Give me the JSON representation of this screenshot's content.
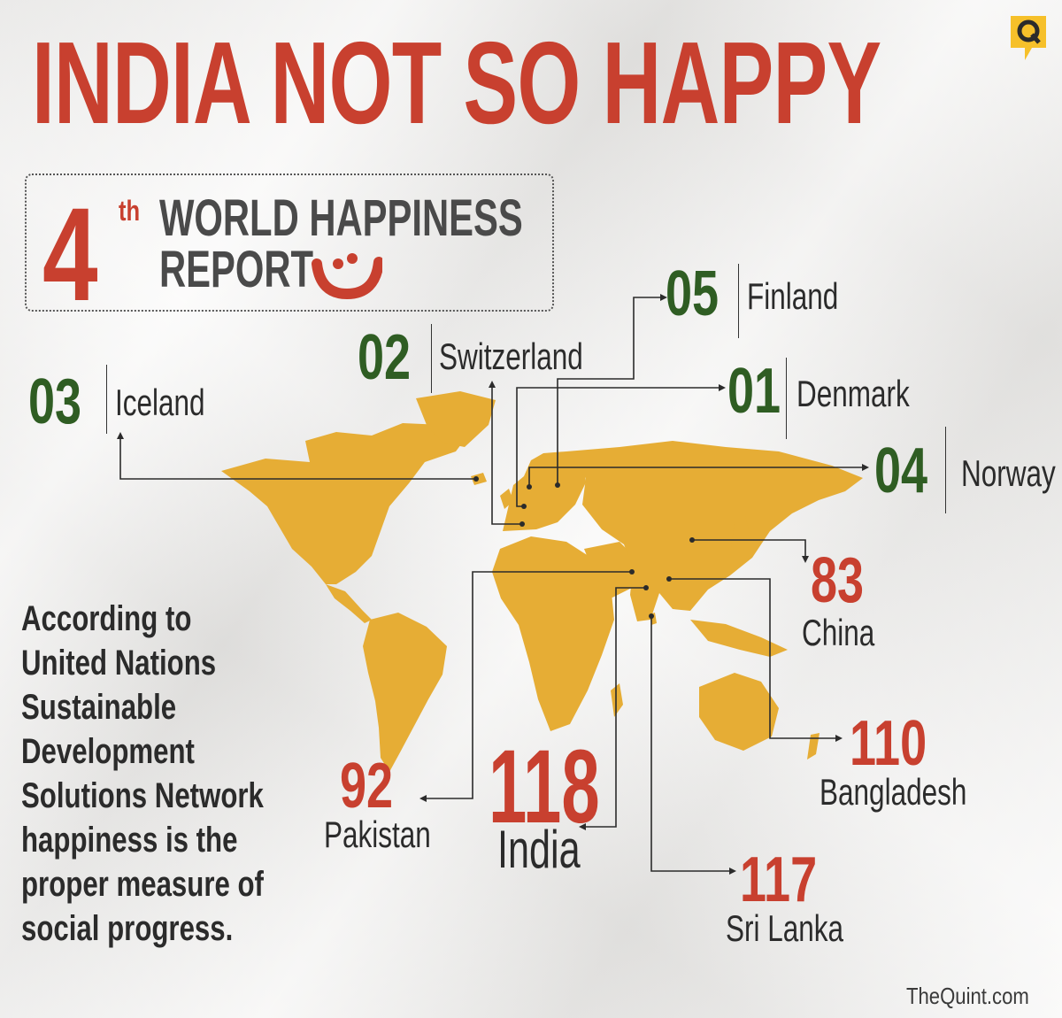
{
  "title": "INDIA NOT SO HAPPY",
  "logo_icon": "the-quint-q-logo-icon",
  "report": {
    "edition_number": "4",
    "edition_suffix": "th",
    "line1": "WORLD HAPPINESS",
    "line2": "REPORT",
    "icon": "smile-icon"
  },
  "rankings": {
    "finland": {
      "rank": "05",
      "country": "Finland"
    },
    "switzerland": {
      "rank": "02",
      "country": "Switzerland"
    },
    "iceland": {
      "rank": "03",
      "country": "Iceland"
    },
    "denmark": {
      "rank": "01",
      "country": "Denmark"
    },
    "norway": {
      "rank": "04",
      "country": "Norway"
    },
    "china": {
      "rank": "83",
      "country": "China"
    },
    "bangladesh": {
      "rank": "110",
      "country": "Bangladesh"
    },
    "pakistan": {
      "rank": "92",
      "country": "Pakistan"
    },
    "india": {
      "rank": "118",
      "country": "India"
    },
    "srilanka": {
      "rank": "117",
      "country": "Sri Lanka"
    }
  },
  "note": "According to\nUnited Nations\nSustainable\nDevelopment\nSolutions Network\nhappiness is the\nproper measure of\nsocial progress.",
  "source": "TheQuint.com",
  "colors": {
    "title_red": "#c8402f",
    "rank_green": "#2f5d23",
    "map_yellow": "#e6ad35",
    "text_dark": "#2b2b2b"
  }
}
